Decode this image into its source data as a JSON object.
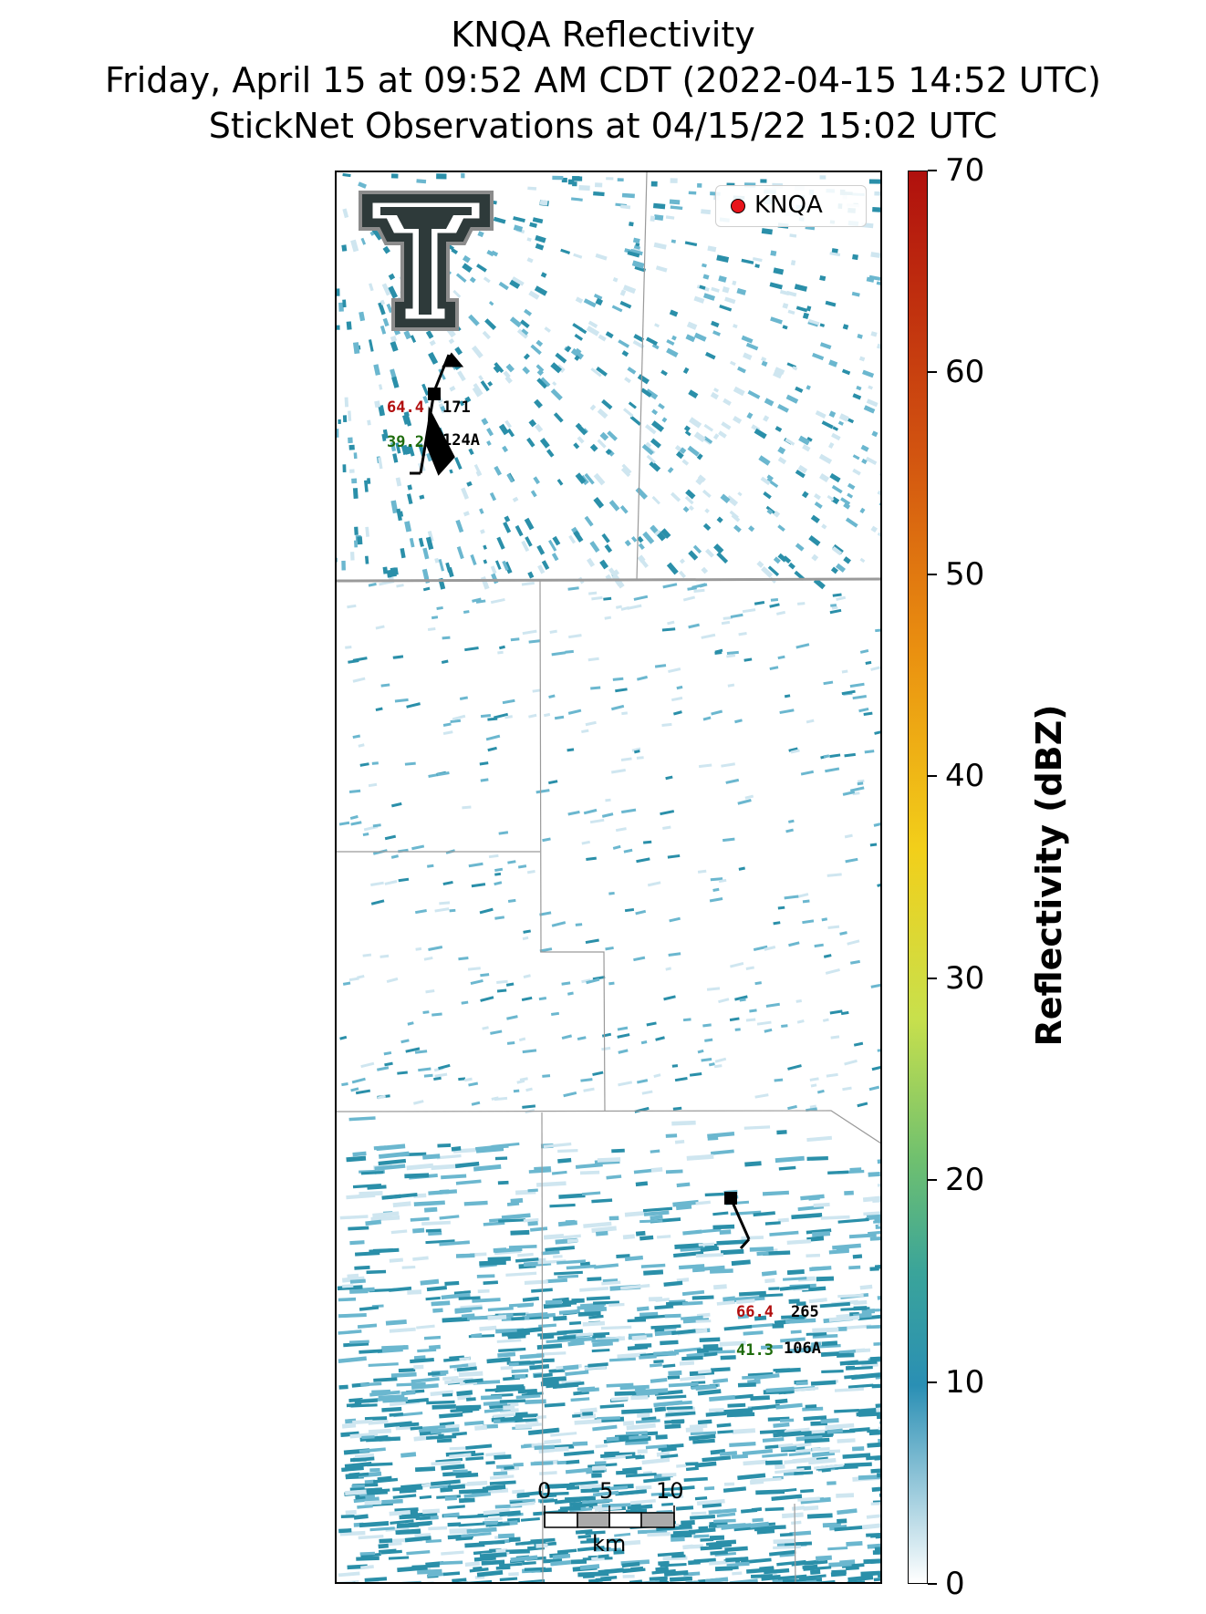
{
  "titles": {
    "line1": "KNQA Reflectivity",
    "line2": "Friday, April 15 at 09:52 AM CDT (2022-04-15 14:52 UTC)",
    "line3": "StickNet Observations at 04/15/22 15:02 UTC"
  },
  "legend": {
    "label": "KNQA",
    "marker_color": "#e8141b"
  },
  "stations": [
    {
      "id": "124A",
      "temperature": "64.4",
      "dewpoint": "39.2",
      "pressure": "171"
    },
    {
      "id": "106A",
      "temperature": "66.4",
      "dewpoint": "41.3",
      "pressure": "265"
    }
  ],
  "scale_bar": {
    "ticks": [
      "0",
      "5",
      "10"
    ],
    "unit": "km"
  },
  "colorbar": {
    "label": "Reflectivity (dBZ)",
    "ticks": [
      "0",
      "10",
      "20",
      "30",
      "40",
      "50",
      "60",
      "70"
    ],
    "range": [
      0,
      70
    ]
  },
  "colors": {
    "echo_light": "#cfe6f0",
    "echo_mid": "#6bb7cf",
    "echo_dark": "#2a8fa9",
    "county_line": "#9a9a9a"
  }
}
